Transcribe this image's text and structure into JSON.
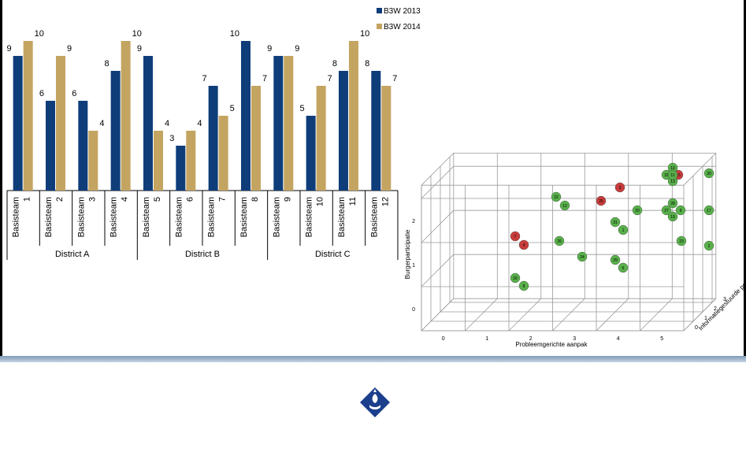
{
  "chart_data": [
    {
      "type": "bar",
      "categories": [
        "Basisteam 1",
        "Basisteam 2",
        "Basisteam 3",
        "Basisteam 4",
        "Basisteam 5",
        "Basisteam 6",
        "Basisteam 7",
        "Basisteam 8",
        "Basisteam 9",
        "Basisteam 10",
        "Basisteam 11",
        "Basisteam 12"
      ],
      "category_lines": [
        [
          "Basisteam",
          "1"
        ],
        [
          "Basisteam",
          "2"
        ],
        [
          "Basisteam",
          "3"
        ],
        [
          "Basisteam",
          "4"
        ],
        [
          "Basisteam",
          "5"
        ],
        [
          "Basisteam",
          "6"
        ],
        [
          "Basisteam",
          "7"
        ],
        [
          "Basisteam",
          "8"
        ],
        [
          "Basisteam",
          "9"
        ],
        [
          "Basisteam",
          "10"
        ],
        [
          "Basisteam",
          "11"
        ],
        [
          "Basisteam",
          "12"
        ]
      ],
      "groups": [
        {
          "label": "District A",
          "count": 4
        },
        {
          "label": "District B",
          "count": 4
        },
        {
          "label": "District C",
          "count": 4
        }
      ],
      "series": [
        {
          "name": "B3W 2013",
          "color": "#0e3d7a",
          "values": [
            9,
            6,
            6,
            8,
            9,
            3,
            7,
            10,
            9,
            5,
            8,
            8
          ]
        },
        {
          "name": "B3W 2014",
          "color": "#c4a461",
          "values": [
            10,
            9,
            4,
            10,
            4,
            4,
            5,
            7,
            9,
            7,
            10,
            7
          ]
        }
      ],
      "ylim": [
        0,
        10
      ],
      "data_labels": true,
      "legend_position": "top-right"
    },
    {
      "type": "scatter",
      "projection": "3d",
      "xlabel": "Probleemgerichte aanpak",
      "ylabel": "Burgerparticipatie",
      "zlabel": "Informatiegestuurde politie",
      "x_ticks": [
        "0",
        "1",
        "2",
        "3",
        "4",
        "5"
      ],
      "y_ticks": [
        "0",
        "1",
        "2"
      ],
      "z_ticks": [
        "0",
        "1",
        "2",
        "3"
      ],
      "points": [
        {
          "label": "7",
          "color": "red"
        },
        {
          "label": "4",
          "color": "red"
        },
        {
          "label": "25",
          "color": "red"
        },
        {
          "label": "3",
          "color": "red"
        },
        {
          "label": "15",
          "color": "red"
        },
        {
          "label": "16",
          "color": "green"
        },
        {
          "label": "8",
          "color": "green"
        },
        {
          "label": "26",
          "color": "green"
        },
        {
          "label": "24",
          "color": "green"
        },
        {
          "label": "22",
          "color": "green"
        },
        {
          "label": "12",
          "color": "green"
        },
        {
          "label": "31",
          "color": "green"
        },
        {
          "label": "1",
          "color": "green"
        },
        {
          "label": "29",
          "color": "green"
        },
        {
          "label": "6",
          "color": "green"
        },
        {
          "label": "20",
          "color": "green"
        },
        {
          "label": "27",
          "color": "green"
        },
        {
          "label": "28",
          "color": "green"
        },
        {
          "label": "9",
          "color": "green"
        },
        {
          "label": "19",
          "color": "green"
        },
        {
          "label": "18",
          "color": "green"
        },
        {
          "label": "13",
          "color": "green"
        },
        {
          "label": "10",
          "color": "green"
        },
        {
          "label": "30",
          "color": "green"
        },
        {
          "label": "17",
          "color": "green"
        },
        {
          "label": "23",
          "color": "green"
        },
        {
          "label": "2",
          "color": "green"
        },
        {
          "label": "11",
          "color": "green"
        }
      ],
      "colors": {
        "red": "#c83c3c",
        "green": "#58b04a"
      }
    }
  ],
  "footer": {
    "logo_icon": "police-emblem-icon",
    "band_color": "#9fb5cc"
  }
}
